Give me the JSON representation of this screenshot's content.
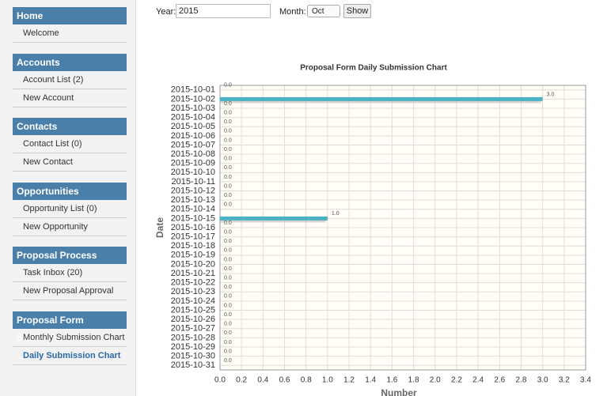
{
  "sidebar": {
    "sections": [
      {
        "title": "Home",
        "items": [
          "Welcome"
        ]
      },
      {
        "title": "Accounts",
        "items": [
          "Account List (2)",
          "New Account"
        ]
      },
      {
        "title": "Contacts",
        "items": [
          "Contact List (0)",
          "New Contact"
        ]
      },
      {
        "title": "Opportunities",
        "items": [
          "Opportunity List (0)",
          "New Opportunity"
        ]
      },
      {
        "title": "Proposal Process",
        "items": [
          "Task Inbox (20)",
          "New Proposal Approval"
        ]
      },
      {
        "title": "Proposal Form Statistics",
        "items": [
          "Monthly Submission Chart",
          "Daily Submission Chart"
        ]
      }
    ]
  },
  "form": {
    "year_label": "Year:",
    "year_value": "2015",
    "month_label": "Month:",
    "month_value": "Oct",
    "button": "Show"
  },
  "chart_data": {
    "type": "hbar",
    "title": "Proposal Form Daily Submission Chart",
    "xlabel": "Number",
    "ylabel": "Date",
    "categories": [
      "2015-10-01",
      "2015-10-02",
      "2015-10-03",
      "2015-10-04",
      "2015-10-05",
      "2015-10-06",
      "2015-10-07",
      "2015-10-08",
      "2015-10-09",
      "2015-10-10",
      "2015-10-11",
      "2015-10-12",
      "2015-10-13",
      "2015-10-14",
      "2015-10-15",
      "2015-10-16",
      "2015-10-17",
      "2015-10-18",
      "2015-10-19",
      "2015-10-20",
      "2015-10-21",
      "2015-10-22",
      "2015-10-23",
      "2015-10-24",
      "2015-10-25",
      "2015-10-26",
      "2015-10-27",
      "2015-10-28",
      "2015-10-29",
      "2015-10-30",
      "2015-10-31"
    ],
    "values": [
      0,
      3,
      0,
      0,
      0,
      0,
      0,
      0,
      0,
      0,
      0,
      0,
      0,
      0,
      1,
      0,
      0,
      0,
      0,
      0,
      0,
      0,
      0,
      0,
      0,
      0,
      0,
      0,
      0,
      0,
      0
    ],
    "value_labels": [
      "0.0",
      "3.0",
      "0.0",
      "0.0",
      "0.0",
      "0.0",
      "0.0",
      "0.0",
      "0.0",
      "0.0",
      "0.0",
      "0.0",
      "0.0",
      "0.0",
      "1.0",
      "0.0",
      "0.0",
      "0.0",
      "0.0",
      "0.0",
      "0.0",
      "0.0",
      "0.0",
      "0.0",
      "0.0",
      "0.0",
      "0.0",
      "0.0",
      "0.0",
      "0.0",
      "0.0"
    ],
    "color": "#4bb2c5",
    "xlim": [
      0,
      3.4
    ],
    "xticks": [
      {
        "value": 0,
        "label": "0.0"
      },
      0.2,
      0.4,
      0.6,
      0.8,
      {
        "value": 1,
        "label": "1.0"
      },
      1.2,
      1.4,
      1.6,
      1.8,
      {
        "value": 2,
        "label": "2.0"
      },
      2.2,
      2.4,
      2.6,
      2.8,
      {
        "value": 3,
        "label": "3.0"
      },
      3.2,
      3.4
    ],
    "grid": true
  }
}
